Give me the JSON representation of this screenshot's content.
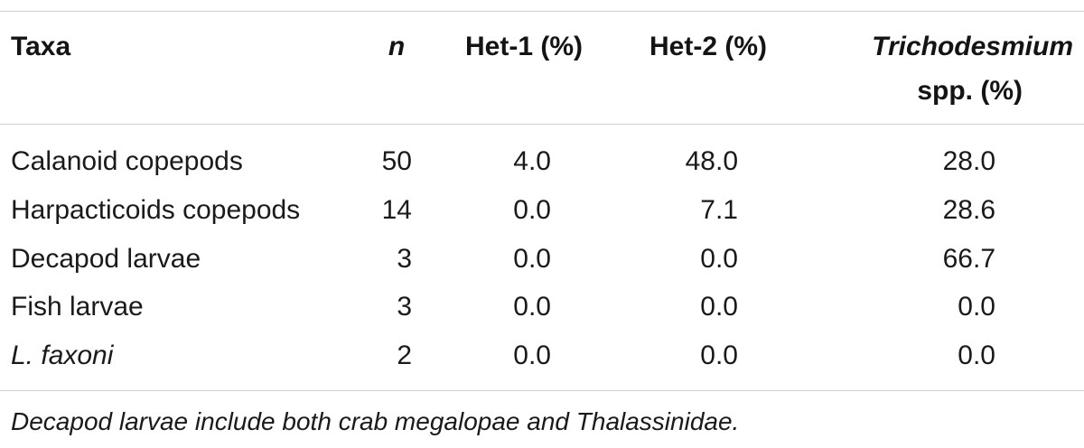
{
  "table": {
    "headers": {
      "taxa": "Taxa",
      "n": "n",
      "het1": "Het-1 (%)",
      "het2": "Het-2 (%)",
      "tri_line1": "Trichodesmium",
      "tri_line2": "spp. (%)"
    },
    "rows": [
      {
        "taxa": "Calanoid copepods",
        "n": "50",
        "het1": "4.0",
        "het2": "48.0",
        "tri": "28.0"
      },
      {
        "taxa": "Harpacticoids copepods",
        "n": "14",
        "het1": "0.0",
        "het2": "7.1",
        "tri": "28.6"
      },
      {
        "taxa": "Decapod larvae",
        "n": "3",
        "het1": "0.0",
        "het2": "0.0",
        "tri": "66.7"
      },
      {
        "taxa": "Fish larvae",
        "n": "3",
        "het1": "0.0",
        "het2": "0.0",
        "tri": "0.0"
      },
      {
        "taxa": "L. faxoni",
        "n": "2",
        "het1": "0.0",
        "het2": "0.0",
        "tri": "0.0"
      }
    ],
    "footnote": "Decapod larvae include both crab megalopae and Thalassinidae."
  }
}
